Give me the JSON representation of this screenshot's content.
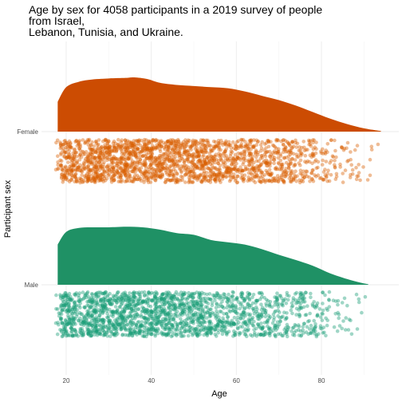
{
  "chart_data": {
    "type": "raincloud",
    "title_lines": [
      "Age by sex for 4058 participants in a 2019 survey of people",
      "from Israel,",
      "Lebanon, Tunisia, and Ukraine."
    ],
    "xlabel": "Age",
    "ylabel": "Participant sex",
    "xlim": [
      16,
      96
    ],
    "x_ticks": [
      20,
      40,
      60,
      80
    ],
    "grid": true,
    "legend": "none",
    "categories": [
      "Female",
      "Male"
    ],
    "series": [
      {
        "name": "Female",
        "color": "#d95f02",
        "fill": "#cc4c02",
        "n_points": 2100,
        "age_range": [
          18,
          94
        ],
        "density": [
          [
            18,
            0.55
          ],
          [
            20,
            0.82
          ],
          [
            23,
            0.92
          ],
          [
            26,
            0.96
          ],
          [
            30,
            0.98
          ],
          [
            34,
            0.99
          ],
          [
            36,
            1.0
          ],
          [
            39,
            0.97
          ],
          [
            42,
            0.9
          ],
          [
            46,
            0.86
          ],
          [
            50,
            0.84
          ],
          [
            54,
            0.82
          ],
          [
            58,
            0.8
          ],
          [
            62,
            0.74
          ],
          [
            66,
            0.66
          ],
          [
            70,
            0.58
          ],
          [
            74,
            0.48
          ],
          [
            78,
            0.36
          ],
          [
            82,
            0.24
          ],
          [
            86,
            0.14
          ],
          [
            90,
            0.06
          ],
          [
            94,
            0.01
          ]
        ]
      },
      {
        "name": "Male",
        "color": "#1b9e77",
        "fill": "#1f9165",
        "n_points": 1958,
        "age_range": [
          18,
          91
        ],
        "density": [
          [
            18,
            0.7
          ],
          [
            20,
            0.92
          ],
          [
            23,
            0.99
          ],
          [
            27,
            1.0
          ],
          [
            30,
            1.0
          ],
          [
            34,
            1.01
          ],
          [
            38,
            1.0
          ],
          [
            42,
            0.96
          ],
          [
            46,
            0.9
          ],
          [
            50,
            0.87
          ],
          [
            54,
            0.78
          ],
          [
            58,
            0.74
          ],
          [
            62,
            0.7
          ],
          [
            66,
            0.62
          ],
          [
            70,
            0.52
          ],
          [
            74,
            0.43
          ],
          [
            78,
            0.33
          ],
          [
            82,
            0.2
          ],
          [
            86,
            0.1
          ],
          [
            89,
            0.04
          ],
          [
            91,
            0.01
          ]
        ]
      }
    ]
  }
}
